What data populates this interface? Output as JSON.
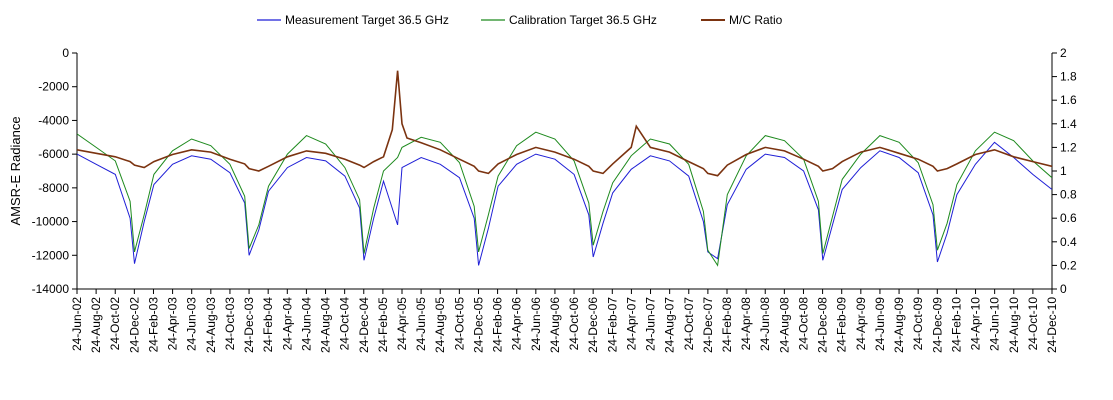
{
  "chart_data": {
    "type": "line",
    "title": "",
    "ylabel": "AMSR-E Radiance",
    "y2label": "",
    "ylim": [
      -14000,
      0
    ],
    "y2lim": [
      0,
      2
    ],
    "y_ticks": [
      0,
      -2000,
      -4000,
      -6000,
      -8000,
      -10000,
      -12000,
      -14000
    ],
    "y_tick_labels": [
      "0",
      "-2000",
      "-4000",
      "-6000",
      "-8000",
      "-10000",
      "-12000",
      "-14000"
    ],
    "y2_ticks": [
      2,
      1.8,
      1.6,
      1.4,
      1.2,
      1,
      0.8,
      0.6,
      0.4,
      0.2,
      0
    ],
    "y2_tick_labels": [
      "2",
      "1.8",
      "1.6",
      "1.4",
      "1.2",
      "1",
      "0.8",
      "0.6",
      "0.4",
      "0.2",
      "0"
    ],
    "x_start": "2002-06-24",
    "x_end": "2010-12-24",
    "x_tick_labels": [
      "24-Jun-02",
      "24-Aug-02",
      "24-Oct-02",
      "24-Dec-02",
      "24-Feb-03",
      "24-Apr-03",
      "24-Jun-03",
      "24-Aug-03",
      "24-Oct-03",
      "24-Dec-03",
      "24-Feb-04",
      "24-Apr-04",
      "24-Jun-04",
      "24-Aug-04",
      "24-Oct-04",
      "24-Dec-04",
      "24-Feb-05",
      "24-Apr-05",
      "24-Jun-05",
      "24-Aug-05",
      "24-Oct-05",
      "24-Dec-05",
      "24-Feb-06",
      "24-Apr-06",
      "24-Jun-06",
      "24-Aug-06",
      "24-Oct-06",
      "24-Dec-06",
      "24-Feb-07",
      "24-Apr-07",
      "24-Jun-07",
      "24-Aug-07",
      "24-Oct-07",
      "24-Dec-07",
      "24-Feb-08",
      "24-Apr-08",
      "24-Jun-08",
      "24-Aug-08",
      "24-Oct-08",
      "24-Dec-08",
      "24-Feb-09",
      "24-Apr-09",
      "24-Jun-09",
      "24-Aug-09",
      "24-Oct-09",
      "24-Dec-09",
      "24-Feb-10",
      "24-Apr-10",
      "24-Jun-10",
      "24-Aug-10",
      "24-Oct-10",
      "24-Dec-10"
    ],
    "grid": false,
    "legend_position": "top",
    "series": [
      {
        "name": "Measurement Target 36.5 GHz",
        "axis": "left",
        "color": "#1f1fd6",
        "x": [
          "2002-06-24",
          "2002-08-24",
          "2002-10-24",
          "2002-12-10",
          "2002-12-24",
          "2003-01-24",
          "2003-02-24",
          "2003-04-24",
          "2003-06-24",
          "2003-08-24",
          "2003-10-24",
          "2003-12-10",
          "2003-12-24",
          "2004-01-24",
          "2004-02-24",
          "2004-04-24",
          "2004-06-24",
          "2004-08-24",
          "2004-10-24",
          "2004-12-10",
          "2004-12-24",
          "2005-01-24",
          "2005-02-24",
          "2005-04-10",
          "2005-04-24",
          "2005-06-24",
          "2005-08-24",
          "2005-10-24",
          "2005-12-10",
          "2005-12-24",
          "2006-01-24",
          "2006-02-24",
          "2006-04-24",
          "2006-06-24",
          "2006-08-24",
          "2006-10-24",
          "2006-12-10",
          "2006-12-24",
          "2007-01-24",
          "2007-02-24",
          "2007-04-24",
          "2007-06-24",
          "2007-08-24",
          "2007-10-24",
          "2007-12-10",
          "2007-12-24",
          "2008-01-24",
          "2008-02-24",
          "2008-04-24",
          "2008-06-24",
          "2008-08-24",
          "2008-10-24",
          "2008-12-10",
          "2008-12-24",
          "2009-01-24",
          "2009-02-24",
          "2009-04-24",
          "2009-06-24",
          "2009-08-24",
          "2009-10-24",
          "2009-12-10",
          "2009-12-24",
          "2010-01-24",
          "2010-02-24",
          "2010-04-24",
          "2010-06-24",
          "2010-08-24",
          "2010-10-24",
          "2010-12-24"
        ],
        "y": [
          -6000,
          -6600,
          -7200,
          -9800,
          -12500,
          -10000,
          -7800,
          -6600,
          -6100,
          -6300,
          -7100,
          -8900,
          -12000,
          -10500,
          -8200,
          -6800,
          -6200,
          -6400,
          -7300,
          -9200,
          -12300,
          -9800,
          -7600,
          -10200,
          -6800,
          -6200,
          -6600,
          -7400,
          -9800,
          -12600,
          -10400,
          -7900,
          -6600,
          -6000,
          -6300,
          -7200,
          -9600,
          -12100,
          -10100,
          -8300,
          -6900,
          -6100,
          -6400,
          -7300,
          -10000,
          -11800,
          -12200,
          -9000,
          -6900,
          -6000,
          -6200,
          -7000,
          -9300,
          -12300,
          -10200,
          -8100,
          -6800,
          -5800,
          -6200,
          -7100,
          -9600,
          -12400,
          -10700,
          -8400,
          -6600,
          -5300,
          -6200,
          -7200,
          -8100
        ]
      },
      {
        "name": "Calibration Target 36.5 GHz",
        "axis": "left",
        "color": "#1e8a1e",
        "x": [
          "2002-06-24",
          "2002-08-24",
          "2002-10-24",
          "2002-12-10",
          "2002-12-24",
          "2003-01-24",
          "2003-02-24",
          "2003-04-24",
          "2003-06-24",
          "2003-08-24",
          "2003-10-24",
          "2003-12-10",
          "2003-12-24",
          "2004-01-24",
          "2004-02-24",
          "2004-04-24",
          "2004-06-24",
          "2004-08-24",
          "2004-10-24",
          "2004-12-10",
          "2004-12-24",
          "2005-01-24",
          "2005-02-24",
          "2005-04-10",
          "2005-04-24",
          "2005-06-24",
          "2005-08-24",
          "2005-10-24",
          "2005-12-10",
          "2005-12-24",
          "2006-01-24",
          "2006-02-24",
          "2006-04-24",
          "2006-06-24",
          "2006-08-24",
          "2006-10-24",
          "2006-12-10",
          "2006-12-24",
          "2007-01-24",
          "2007-02-24",
          "2007-04-24",
          "2007-06-24",
          "2007-08-24",
          "2007-10-24",
          "2007-12-10",
          "2007-12-24",
          "2008-01-24",
          "2008-02-24",
          "2008-04-24",
          "2008-06-24",
          "2008-08-24",
          "2008-10-24",
          "2008-12-10",
          "2008-12-24",
          "2009-01-24",
          "2009-02-24",
          "2009-04-24",
          "2009-06-24",
          "2009-08-24",
          "2009-10-24",
          "2009-12-10",
          "2009-12-24",
          "2010-01-24",
          "2010-02-24",
          "2010-04-24",
          "2010-06-24",
          "2010-08-24",
          "2010-10-24",
          "2010-12-24"
        ],
        "y": [
          -4800,
          -5600,
          -6400,
          -8800,
          -11800,
          -9600,
          -7200,
          -5800,
          -5100,
          -5500,
          -6600,
          -8500,
          -11600,
          -10200,
          -7900,
          -6000,
          -4900,
          -5400,
          -6800,
          -8700,
          -11900,
          -9200,
          -7000,
          -6200,
          -5600,
          -5000,
          -5300,
          -6500,
          -9100,
          -11800,
          -9600,
          -7300,
          -5500,
          -4700,
          -5100,
          -6400,
          -8900,
          -11400,
          -9400,
          -7700,
          -6100,
          -5100,
          -5400,
          -6600,
          -9400,
          -11700,
          -12600,
          -8400,
          -6100,
          -4900,
          -5200,
          -6300,
          -8800,
          -11900,
          -9700,
          -7500,
          -6000,
          -4900,
          -5300,
          -6500,
          -9000,
          -11700,
          -10100,
          -7800,
          -5800,
          -4700,
          -5200,
          -6400,
          -7400
        ]
      },
      {
        "name": "M/C Ratio",
        "axis": "right",
        "color": "#7b3310",
        "x": [
          "2002-06-24",
          "2002-08-24",
          "2002-10-24",
          "2002-12-10",
          "2002-12-24",
          "2003-01-24",
          "2003-02-24",
          "2003-04-24",
          "2003-06-24",
          "2003-08-24",
          "2003-10-24",
          "2003-12-10",
          "2003-12-24",
          "2004-01-24",
          "2004-02-24",
          "2004-04-24",
          "2004-06-24",
          "2004-08-24",
          "2004-10-24",
          "2004-12-10",
          "2004-12-24",
          "2005-01-24",
          "2005-02-24",
          "2005-03-24",
          "2005-04-10",
          "2005-04-24",
          "2005-05-10",
          "2005-06-24",
          "2005-08-24",
          "2005-10-24",
          "2005-12-10",
          "2005-12-24",
          "2006-01-24",
          "2006-02-24",
          "2006-04-24",
          "2006-06-24",
          "2006-08-24",
          "2006-10-24",
          "2006-12-10",
          "2006-12-24",
          "2007-01-24",
          "2007-02-24",
          "2007-04-24",
          "2007-05-10",
          "2007-06-24",
          "2007-08-24",
          "2007-10-24",
          "2007-12-10",
          "2007-12-24",
          "2008-01-24",
          "2008-02-24",
          "2008-04-24",
          "2008-06-24",
          "2008-08-24",
          "2008-10-24",
          "2008-12-10",
          "2008-12-24",
          "2009-01-24",
          "2009-02-24",
          "2009-04-24",
          "2009-06-24",
          "2009-08-24",
          "2009-10-24",
          "2009-12-10",
          "2009-12-24",
          "2010-01-24",
          "2010-02-24",
          "2010-04-24",
          "2010-06-24",
          "2010-08-24",
          "2010-10-24",
          "2010-12-24"
        ],
        "y": [
          1.18,
          1.15,
          1.12,
          1.08,
          1.05,
          1.03,
          1.08,
          1.14,
          1.18,
          1.16,
          1.1,
          1.06,
          1.02,
          1.0,
          1.04,
          1.12,
          1.17,
          1.15,
          1.1,
          1.05,
          1.03,
          1.08,
          1.12,
          1.35,
          1.85,
          1.4,
          1.28,
          1.24,
          1.18,
          1.1,
          1.04,
          1.0,
          0.98,
          1.06,
          1.14,
          1.2,
          1.16,
          1.1,
          1.04,
          1.0,
          0.98,
          1.06,
          1.2,
          1.38,
          1.2,
          1.16,
          1.08,
          1.02,
          0.98,
          0.96,
          1.05,
          1.14,
          1.2,
          1.17,
          1.1,
          1.04,
          1.0,
          1.02,
          1.08,
          1.16,
          1.2,
          1.15,
          1.1,
          1.04,
          1.0,
          1.02,
          1.06,
          1.14,
          1.18,
          1.12,
          1.08,
          1.04
        ]
      }
    ]
  }
}
